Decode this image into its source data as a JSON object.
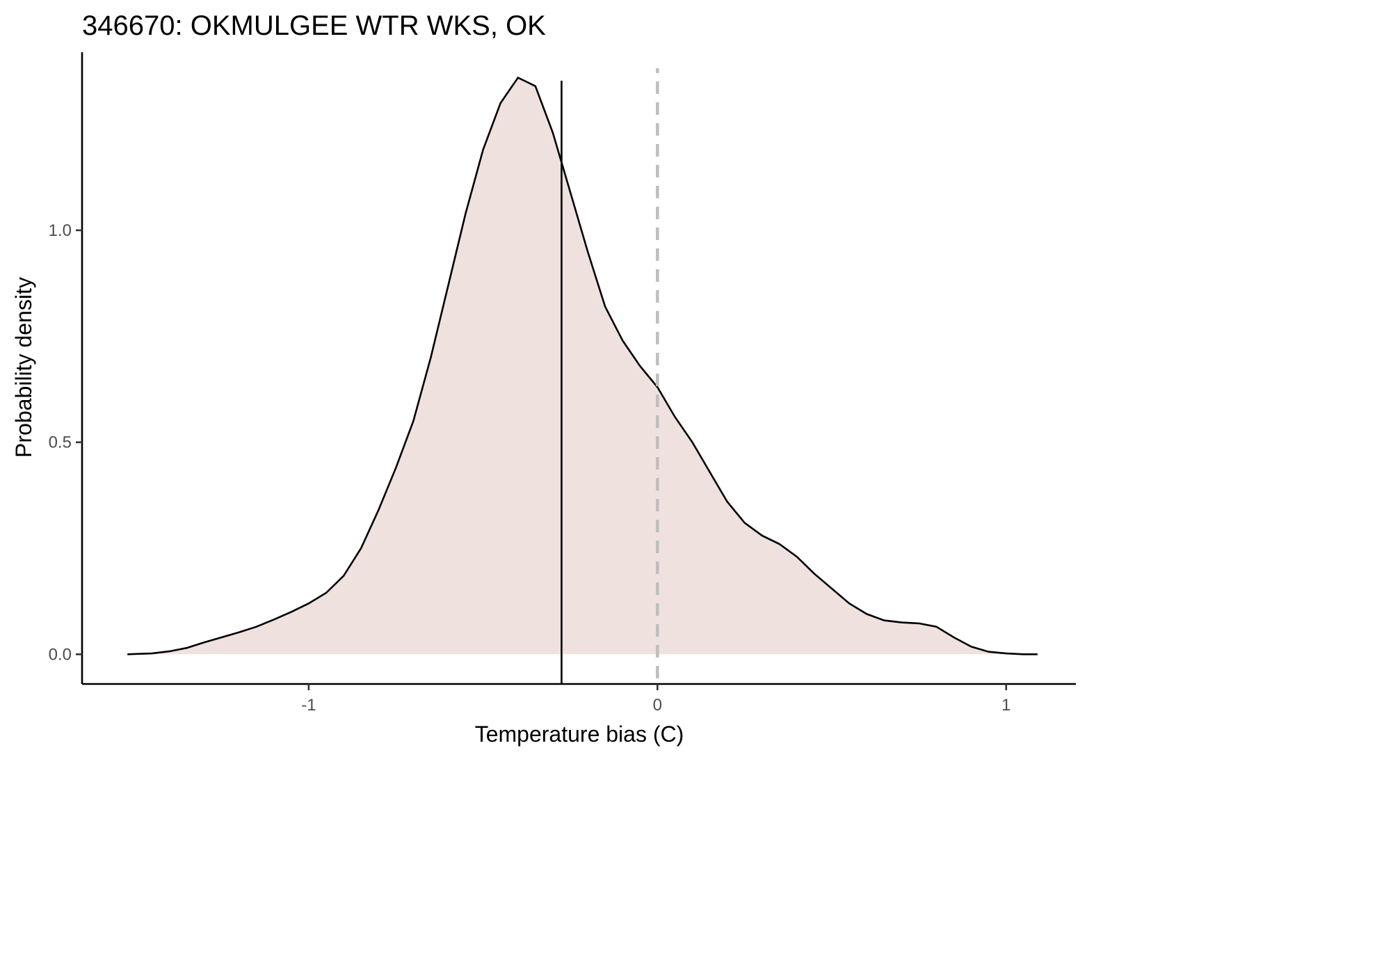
{
  "chart_data": {
    "type": "area",
    "title": "346670: OKMULGEE WTR WKS, OK",
    "xlabel": "Temperature bias (C)",
    "ylabel": "Probability density",
    "xlim": [
      -1.65,
      1.2
    ],
    "ylim": [
      -0.07,
      1.42
    ],
    "x_ticks": [
      -1,
      0,
      1
    ],
    "x_tick_labels": [
      "-1",
      "0",
      "1"
    ],
    "y_ticks": [
      0.0,
      0.5,
      1.0
    ],
    "y_tick_labels": [
      "0.0",
      "0.5",
      "1.0"
    ],
    "grid": false,
    "legend": "none",
    "fill_color": "#efe1de",
    "line_color": "#000000",
    "series": [
      {
        "x": [
          -1.52,
          -1.45,
          -1.4,
          -1.35,
          -1.3,
          -1.25,
          -1.2,
          -1.15,
          -1.1,
          -1.05,
          -1.0,
          -0.95,
          -0.9,
          -0.85,
          -0.8,
          -0.75,
          -0.7,
          -0.65,
          -0.6,
          -0.55,
          -0.5,
          -0.45,
          -0.4,
          -0.35,
          -0.3,
          -0.25,
          -0.2,
          -0.15,
          -0.1,
          -0.05,
          0.0,
          0.05,
          0.1,
          0.15,
          0.2,
          0.25,
          0.3,
          0.35,
          0.4,
          0.45,
          0.5,
          0.55,
          0.6,
          0.65,
          0.7,
          0.75,
          0.8,
          0.85,
          0.9,
          0.95,
          1.0,
          1.05,
          1.09
        ],
        "y": [
          0.0,
          0.002,
          0.007,
          0.015,
          0.028,
          0.04,
          0.052,
          0.065,
          0.082,
          0.1,
          0.12,
          0.145,
          0.185,
          0.25,
          0.34,
          0.44,
          0.55,
          0.7,
          0.87,
          1.04,
          1.19,
          1.3,
          1.36,
          1.34,
          1.23,
          1.09,
          0.95,
          0.82,
          0.74,
          0.68,
          0.63,
          0.56,
          0.5,
          0.43,
          0.36,
          0.31,
          0.28,
          0.26,
          0.23,
          0.19,
          0.155,
          0.12,
          0.095,
          0.08,
          0.075,
          0.073,
          0.065,
          0.04,
          0.018,
          0.006,
          0.002,
          0.0,
          0.0
        ]
      }
    ],
    "reference_lines": [
      {
        "x": -0.275,
        "style": "solid",
        "color": "#000000"
      },
      {
        "x": 0.0,
        "style": "dashed",
        "color": "#bebebe"
      }
    ]
  }
}
